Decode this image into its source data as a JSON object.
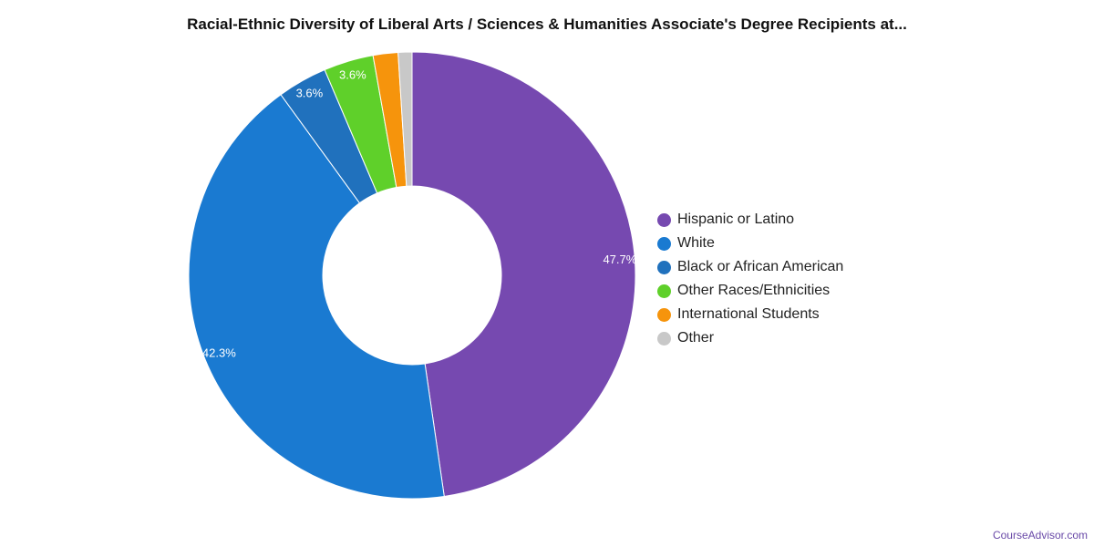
{
  "chart_data": {
    "type": "pie",
    "title": "Racial-Ethnic Diversity of Liberal Arts / Sciences & Humanities Associate's Degree Recipients at...",
    "donut": true,
    "legend_position": "right",
    "slices": [
      {
        "label": "Hispanic or Latino",
        "value": 47.7,
        "display": "47.7%",
        "color": "#7649b0"
      },
      {
        "label": "White",
        "value": 42.3,
        "display": "42.3%",
        "color": "#1a7ad1"
      },
      {
        "label": "Black or African American",
        "value": 3.6,
        "display": "3.6%",
        "color": "#2071bd"
      },
      {
        "label": "Other Races/Ethnicities",
        "value": 3.6,
        "display": "3.6%",
        "color": "#5fd02a"
      },
      {
        "label": "International Students",
        "value": 1.8,
        "display": "",
        "color": "#f6940c"
      },
      {
        "label": "Other",
        "value": 1.0,
        "display": "",
        "color": "#c8c8c8"
      }
    ]
  },
  "credit": "CourseAdvisor.com"
}
